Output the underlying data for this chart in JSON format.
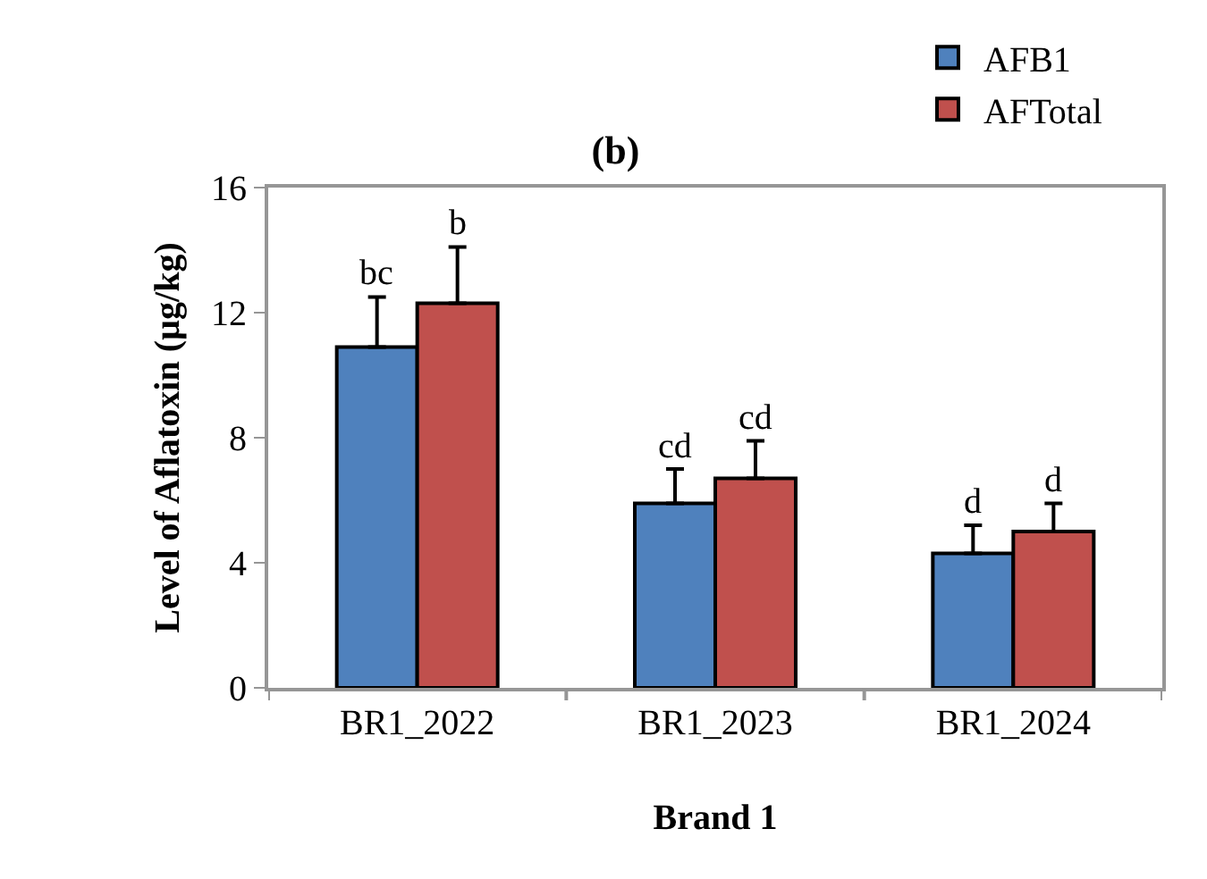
{
  "chart_data": {
    "type": "bar",
    "title": "(b)",
    "xlabel": "Brand 1",
    "ylabel": "Level of Aflatoxin (µg/kg)",
    "categories": [
      "BR1_2022",
      "BR1_2023",
      "BR1_2024"
    ],
    "series": [
      {
        "name": "AFB1",
        "color": "#4f81bd",
        "values": [
          10.9,
          5.9,
          4.3
        ],
        "errors": [
          [
            10.9,
            12.5
          ],
          [
            5.9,
            7.0
          ],
          [
            4.3,
            5.2
          ]
        ],
        "value_labels": [
          "bc",
          "cd",
          "d"
        ]
      },
      {
        "name": "AFTotal",
        "color": "#c0504d",
        "values": [
          12.3,
          6.7,
          5.0
        ],
        "errors": [
          [
            12.3,
            14.1
          ],
          [
            6.7,
            7.9
          ],
          [
            5.0,
            5.9
          ]
        ],
        "value_labels": [
          "b",
          "cd",
          "d"
        ]
      }
    ],
    "ylim": [
      0,
      16
    ],
    "yticks": [
      0,
      4,
      8,
      12,
      16
    ],
    "legend": "top right"
  }
}
